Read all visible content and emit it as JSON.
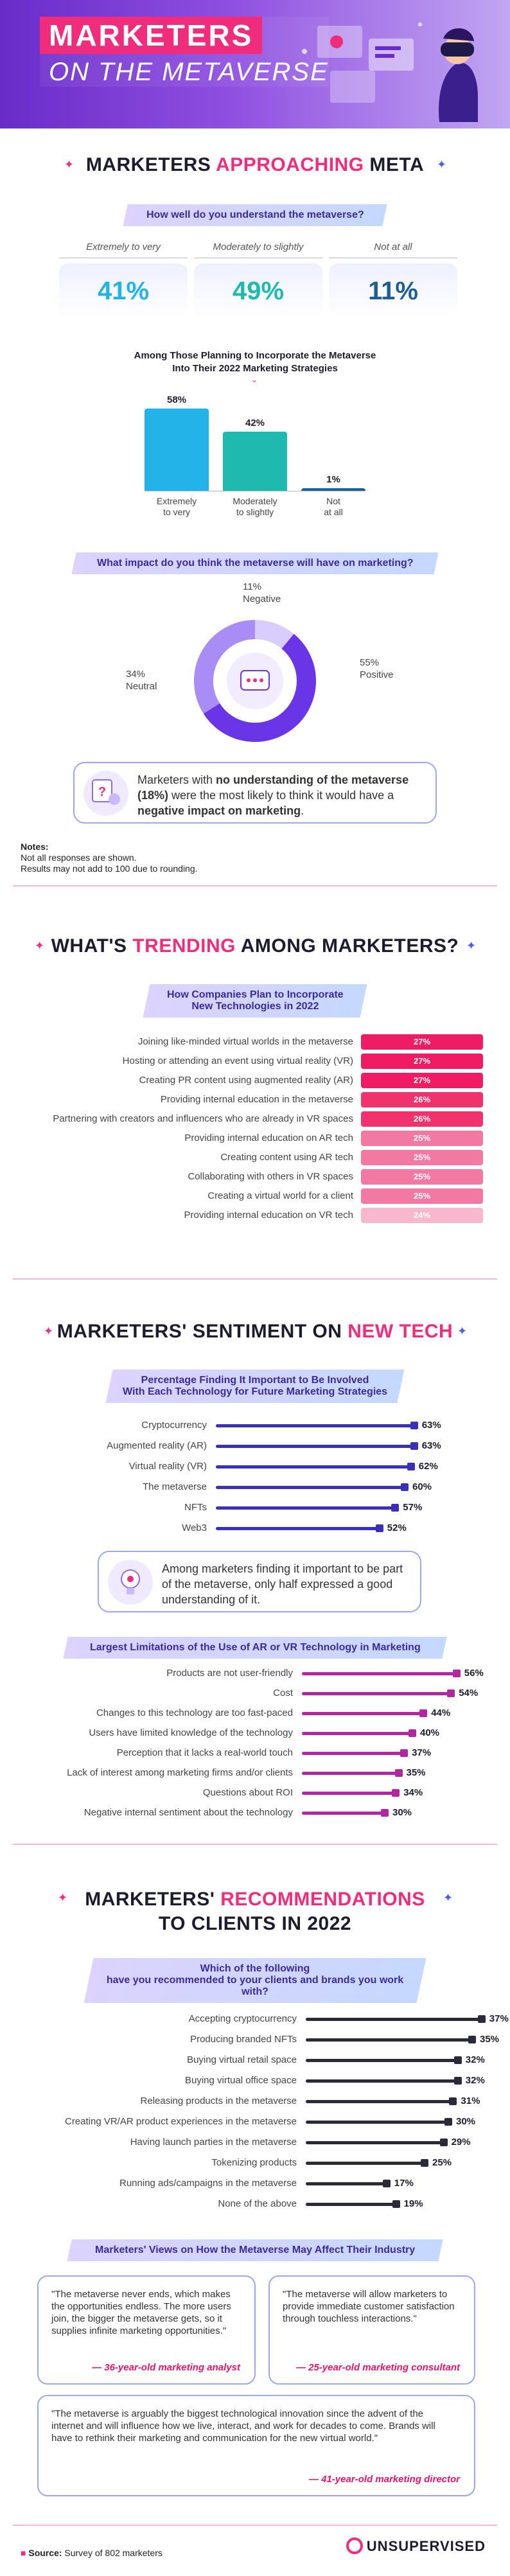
{
  "hero": {
    "line1": "MARKETERS",
    "line2": "ON THE METAVERSE",
    "art_icon": "vr-headset-illustration-icon"
  },
  "section1": {
    "title_pre": "MARKETERS ",
    "title_accent": "APPROACHING",
    "title_post": " META",
    "question1": "How well do you understand the metaverse?",
    "stats": [
      {
        "label": "Extremely to very",
        "value": "41%",
        "color": "#23b3e8"
      },
      {
        "label": "Moderately to slightly",
        "value": "49%",
        "color": "#20b9b0"
      },
      {
        "label": "Not at all",
        "value": "11%",
        "color": "#1f5e94"
      }
    ],
    "subchart_title_1": "Among Those Planning to Incorporate the Metaverse",
    "subchart_title_2": "Into Their 2022 Marketing Strategies",
    "question2": "What impact do you think the metaverse will have on marketing?",
    "callout_text_1": "Marketers with ",
    "callout_bold": "no understanding of the metaverse (18%)",
    "callout_text_2": " were the most likely to think it would have a ",
    "callout_bold_2": "negative impact on marketing",
    "callout_text_3": ".",
    "notes_title": "Notes:",
    "notes_1": "Not all responses are shown.",
    "notes_2": "Results may not add to 100 due to rounding."
  },
  "section2": {
    "title_pre": "WHAT'S ",
    "title_accent": "TRENDING",
    "title_post": " AMONG MARKETERS?",
    "question": "How Companies Plan to Incorporate New Technologies in 2022",
    "question_l1": "How Companies Plan to Incorporate",
    "question_l2": "New Technologies in 2022"
  },
  "section3": {
    "title_pre": "MARKETERS' SENTIMENT ON ",
    "title_accent": "NEW TECH",
    "question_l1": "Percentage Finding It Important to Be Involved",
    "question_l2": "With Each Technology for Future Marketing Strategies",
    "callout": "Among marketers finding it important to be part of the metaverse, only half expressed a good understanding of it.",
    "question2": "Largest Limitations of the Use of AR or VR Technology in Marketing"
  },
  "section4": {
    "title_line1_pre": "MARKETERS' ",
    "title_line1_accent": "RECOMMENDATIONS",
    "title_line2": "TO CLIENTS IN 2022",
    "question_l1": "Which of the following",
    "question_l2": "have you recommended to your clients and brands you work with?",
    "views_title": "Marketers' Views on How the Metaverse May Affect Their Industry",
    "quotes": [
      {
        "text": "\"The metaverse never ends, which makes the opportunities endless. The more users join, the bigger the metaverse gets, so it supplies infinite marketing opportunities.\"",
        "attr": "— 36-year-old marketing analyst"
      },
      {
        "text": "\"The metaverse will allow marketers to provide immediate customer satisfaction through touchless interactions.\"",
        "attr": "— 25-year-old marketing consultant"
      },
      {
        "text": "\"The metaverse is arguably the biggest technological innovation since the advent of the internet and will influence how we live, interact, and work for decades to come. Brands will have to rethink their marketing and communication for the new virtual world.\"",
        "attr": "— 41-year-old marketing director"
      }
    ]
  },
  "footer": {
    "source_label": "Source:",
    "source_text": " Survey of 802 marketers",
    "brand": "UNSUPERVISED"
  },
  "chart_data": [
    {
      "type": "bar",
      "title": "Among Those Planning to Incorporate the Metaverse Into Their 2022 Marketing Strategies",
      "categories": [
        "Extremely to very",
        "Moderately to slightly",
        "Not at all"
      ],
      "values": [
        58,
        42,
        1
      ],
      "colors": [
        "#23b3e8",
        "#20b9b0",
        "#1f5e94"
      ],
      "ylim": [
        0,
        100
      ]
    },
    {
      "type": "pie",
      "title": "What impact do you think the metaverse will have on marketing?",
      "categories": [
        "Negative",
        "Positive",
        "Neutral"
      ],
      "values": [
        11,
        55,
        34
      ],
      "colors": [
        "#d9ccff",
        "#6a35e6",
        "#a98cf5"
      ]
    },
    {
      "type": "bar",
      "title": "How Companies Plan to Incorporate New Technologies in 2022",
      "categories": [
        "Joining like-minded virtual worlds in the metaverse",
        "Hosting or attending an event using virtual reality (VR)",
        "Creating PR content using augmented reality (AR)",
        "Providing internal education in the metaverse",
        "Partnering with creators and influencers who are already in VR spaces",
        "Providing internal education on AR tech",
        "Creating content using AR tech",
        "Collaborating with others in VR spaces",
        "Creating a virtual world for a client",
        "Providing internal education on VR tech"
      ],
      "values": [
        27,
        27,
        27,
        26,
        26,
        25,
        25,
        25,
        25,
        24
      ],
      "colors": [
        "#ef1c63",
        "#ef1c63",
        "#ef1c63",
        "#f0336f",
        "#f0336f",
        "#f27aa2",
        "#f27aa2",
        "#f27aa2",
        "#f27aa2",
        "#f7b7cd"
      ]
    },
    {
      "type": "bar",
      "title": "Percentage Finding It Important to Be Involved With Each Technology for Future Marketing Strategies",
      "categories": [
        "Cryptocurrency",
        "Augmented reality (AR)",
        "Virtual reality (VR)",
        "The metaverse",
        "NFTs",
        "Web3"
      ],
      "values": [
        63,
        63,
        62,
        60,
        57,
        52
      ],
      "color": "#3a2fb8"
    },
    {
      "type": "bar",
      "title": "Largest Limitations of the Use of AR or VR Technology in Marketing",
      "categories": [
        "Products are not user-friendly",
        "Cost",
        "Changes to this technology are too fast-paced",
        "Users have limited knowledge of the technology",
        "Perception that it lacks a real-world touch",
        "Lack of interest among marketing firms and/or clients",
        "Questions about ROI",
        "Negative internal sentiment about the technology"
      ],
      "values": [
        56,
        54,
        44,
        40,
        37,
        35,
        34,
        30
      ],
      "color": "#b2269f"
    },
    {
      "type": "bar",
      "title": "Which of the following have you recommended to your clients and brands you work with?",
      "categories": [
        "Accepting cryptocurrency",
        "Producing branded NFTs",
        "Buying virtual retail space",
        "Buying virtual office space",
        "Releasing products in the metaverse",
        "Creating VR/AR product experiences in the metaverse",
        "Having launch parties in the metaverse",
        "Tokenizing products",
        "Running ads/campaigns in the metaverse",
        "None of the above"
      ],
      "values": [
        37,
        35,
        32,
        32,
        31,
        30,
        29,
        25,
        17,
        19
      ],
      "color": "#2a2a3a"
    }
  ]
}
